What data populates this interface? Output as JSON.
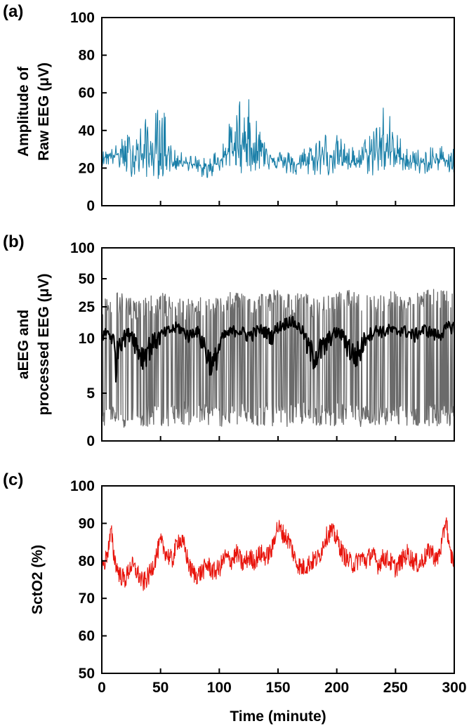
{
  "chart_data": [
    {
      "panel": "(a)",
      "type": "line",
      "ylabel": [
        "Amplitude of",
        "Raw EEG (μV)"
      ],
      "xlim": [
        0,
        300
      ],
      "ylim": [
        0,
        100
      ],
      "yticks": [
        0,
        20,
        40,
        60,
        80,
        100
      ],
      "xticks": [
        0,
        50,
        100,
        150,
        200,
        250,
        300
      ],
      "xtick_labels_shown": false,
      "series": [
        {
          "color": "#1a7fa8",
          "style": "dense-band",
          "x": [
            0,
            10,
            20,
            30,
            40,
            50,
            55,
            60,
            70,
            80,
            90,
            100,
            110,
            120,
            130,
            140,
            150,
            160,
            170,
            180,
            190,
            200,
            210,
            220,
            230,
            240,
            250,
            260,
            270,
            280,
            290,
            300
          ],
          "low": [
            21,
            21,
            16,
            15,
            15,
            14,
            16,
            18,
            20,
            16,
            14,
            18,
            20,
            17,
            18,
            19,
            19,
            16,
            15,
            16,
            15,
            17,
            18,
            19,
            15,
            17,
            18,
            19,
            16,
            18,
            19,
            15
          ],
          "high": [
            29,
            31,
            38,
            42,
            48,
            54,
            52,
            30,
            28,
            27,
            25,
            33,
            46,
            64,
            50,
            37,
            30,
            29,
            30,
            37,
            40,
            38,
            32,
            31,
            44,
            58,
            40,
            33,
            30,
            31,
            33,
            31
          ],
          "center": [
            26,
            27,
            27,
            27,
            27,
            28,
            28,
            23,
            24,
            21,
            19,
            24,
            29,
            33,
            30,
            28,
            24,
            22,
            22,
            25,
            27,
            27,
            24,
            24,
            28,
            31,
            27,
            24,
            22,
            23,
            25,
            23
          ]
        }
      ]
    },
    {
      "panel": "(b)",
      "type": "line",
      "ylabel": [
        "aEEG and",
        "processed EEG (μV)"
      ],
      "xlim": [
        0,
        300
      ],
      "yscale": "semi-log",
      "ytick_labels": [
        "0",
        "5",
        "10",
        "25",
        "50",
        "100"
      ],
      "xticks": [
        0,
        50,
        100,
        150,
        200,
        250,
        300
      ],
      "xtick_labels_shown": false,
      "series": [
        {
          "color": "#6b6b6b",
          "style": "dense-band",
          "x": [
            0,
            10,
            20,
            30,
            40,
            50,
            60,
            70,
            80,
            90,
            100,
            110,
            120,
            130,
            140,
            150,
            160,
            170,
            180,
            190,
            200,
            210,
            220,
            230,
            240,
            250,
            260,
            270,
            280,
            290,
            300
          ],
          "low": [
            1.6,
            1.5,
            1.4,
            1.6,
            1.5,
            1.5,
            1.6,
            1.7,
            1.5,
            1.6,
            1.5,
            1.5,
            1.6,
            1.5,
            1.6,
            1.5,
            1.5,
            1.7,
            1.6,
            1.5,
            1.6,
            1.5,
            1.5,
            1.6,
            1.5,
            1.5,
            1.6,
            1.5,
            1.6,
            1.5,
            1.5
          ],
          "high": [
            30,
            38,
            35,
            30,
            32,
            36,
            33,
            30,
            31,
            34,
            32,
            36,
            38,
            35,
            37,
            40,
            34,
            36,
            33,
            32,
            36,
            38,
            34,
            36,
            35,
            38,
            33,
            36,
            40,
            37,
            42
          ]
        },
        {
          "color": "#000000",
          "style": "line",
          "x": [
            0,
            5,
            10,
            12,
            15,
            20,
            25,
            30,
            35,
            40,
            45,
            50,
            55,
            60,
            65,
            70,
            75,
            80,
            85,
            90,
            95,
            100,
            105,
            110,
            115,
            120,
            125,
            130,
            135,
            140,
            145,
            150,
            155,
            160,
            165,
            170,
            175,
            180,
            185,
            190,
            195,
            200,
            205,
            210,
            215,
            220,
            225,
            230,
            235,
            240,
            245,
            250,
            255,
            260,
            265,
            270,
            275,
            280,
            285,
            290,
            295,
            300
          ],
          "y": [
            11,
            12,
            10,
            7,
            10,
            11,
            12,
            9,
            8,
            9,
            10,
            11,
            12,
            13,
            14,
            12,
            11,
            13,
            10,
            8,
            7,
            9,
            11,
            12,
            13,
            12,
            11,
            12,
            13,
            12,
            11,
            14,
            15,
            17,
            15,
            13,
            9,
            8,
            8.5,
            9,
            11,
            12,
            11,
            9,
            8,
            8.5,
            11,
            12,
            13,
            12,
            13,
            12,
            13,
            12,
            11,
            12,
            13,
            12,
            11,
            12,
            14,
            14
          ]
        }
      ]
    },
    {
      "panel": "(c)",
      "type": "line",
      "ylabel": [
        "SctO2 (%)"
      ],
      "xlabel": "Time (minute)",
      "xlim": [
        0,
        300
      ],
      "ylim": [
        50,
        100
      ],
      "yticks": [
        50,
        60,
        70,
        80,
        90,
        100
      ],
      "xticks": [
        0,
        50,
        100,
        150,
        200,
        250,
        300
      ],
      "xtick_labels_shown": true,
      "series": [
        {
          "color": "#e8140c",
          "style": "line",
          "x": [
            0,
            3,
            6,
            8,
            10,
            13,
            16,
            20,
            25,
            30,
            35,
            40,
            45,
            50,
            55,
            60,
            65,
            70,
            75,
            80,
            85,
            90,
            95,
            100,
            105,
            110,
            115,
            120,
            125,
            130,
            135,
            140,
            145,
            148,
            150,
            155,
            160,
            165,
            170,
            175,
            180,
            185,
            190,
            195,
            200,
            205,
            210,
            215,
            220,
            225,
            230,
            235,
            240,
            245,
            250,
            255,
            260,
            265,
            270,
            275,
            280,
            285,
            290,
            293,
            296,
            300
          ],
          "y": [
            78,
            80,
            84,
            88,
            82,
            78,
            76,
            75,
            79,
            77,
            74,
            76,
            80,
            85,
            82,
            80,
            86,
            84,
            78,
            76,
            77,
            79,
            77,
            78,
            81,
            80,
            82,
            79,
            81,
            80,
            82,
            81,
            83,
            88,
            89,
            87,
            85,
            80,
            78,
            79,
            80,
            81,
            86,
            88,
            86,
            82,
            80,
            79,
            81,
            80,
            82,
            79,
            81,
            80,
            78,
            80,
            82,
            80,
            79,
            81,
            83,
            80,
            85,
            92,
            82,
            80
          ]
        }
      ]
    }
  ]
}
